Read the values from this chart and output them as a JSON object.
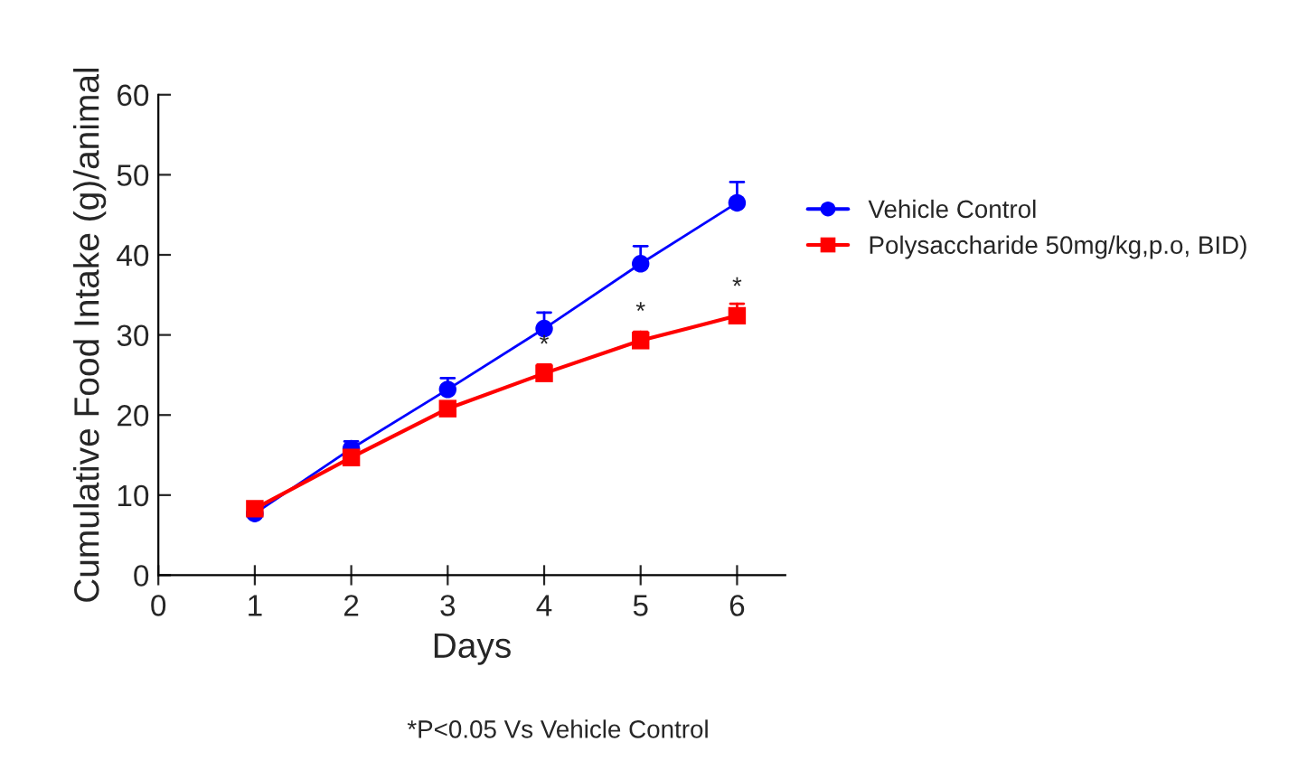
{
  "chart_data": {
    "type": "line",
    "xlabel": "Days",
    "ylabel": "Cumulative Food Intake (g)/animal",
    "x": [
      1,
      2,
      3,
      4,
      5,
      6
    ],
    "xlim": [
      0,
      6.5
    ],
    "xticks": [
      0,
      1,
      2,
      3,
      4,
      5,
      6
    ],
    "ylim": [
      0,
      60
    ],
    "yticks": [
      0,
      10,
      20,
      30,
      40,
      50,
      60
    ],
    "series": [
      {
        "name": "Vehicle Control",
        "color": "#0000ff",
        "marker": "circle",
        "values": [
          7.7,
          15.8,
          23.2,
          30.8,
          38.9,
          46.5
        ],
        "errors": [
          null,
          [
            15.8,
            16.7
          ],
          [
            23.2,
            24.6
          ],
          [
            30.8,
            32.8
          ],
          [
            38.9,
            41.1
          ],
          [
            46.5,
            49.1
          ]
        ]
      },
      {
        "name": "Polysaccharide 50mg/kg,p.o, BID)",
        "color": "#ff0000",
        "marker": "square",
        "values": [
          8.3,
          14.7,
          20.8,
          25.2,
          29.3,
          32.4
        ],
        "errors": [
          null,
          null,
          null,
          [
            25.2,
            26.3
          ],
          [
            29.3,
            30.4
          ],
          [
            32.4,
            33.9
          ]
        ]
      }
    ],
    "annotations": [
      {
        "text": "*",
        "x": 4,
        "y": 25.2
      },
      {
        "text": "*",
        "x": 5,
        "y": 29.3
      },
      {
        "text": "*",
        "x": 6,
        "y": 32.4
      },
      "*P<0.05 Vs Vehicle Control"
    ],
    "legend": "right",
    "grid": false
  }
}
